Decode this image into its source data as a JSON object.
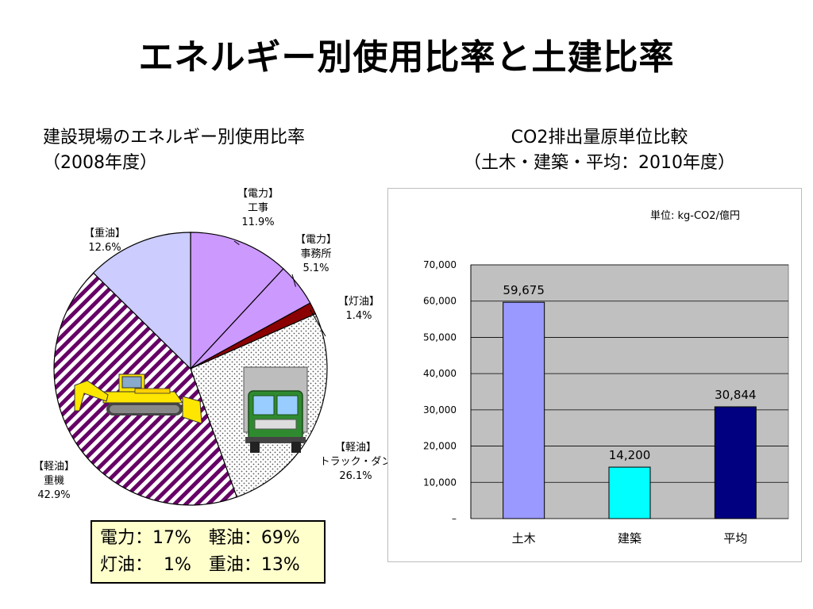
{
  "title": "エネルギー別使用比率と土建比率",
  "left_heading": {
    "line1": "建設現場のエネルギー別使用比率",
    "line2": "（2008年度）"
  },
  "right_heading": {
    "line1": "CO2排出量原単位比較",
    "line2": "（土木・建築・平均：2010年度）"
  },
  "summary": {
    "row1": "電力：17%　軽油：69%",
    "row2": "灯油：  1%　重油：13%"
  },
  "icons": {
    "bulldozer": "bulldozer-icon",
    "truck": "dump-truck-icon"
  },
  "chart_data": [
    {
      "type": "pie",
      "slices": [
        {
          "label_lines": [
            "【電力】",
            "工事"
          ],
          "pct_label": "11.9%",
          "value": 11.9,
          "color": "#cc99ff",
          "pattern": "solid"
        },
        {
          "label_lines": [
            "【電力】",
            "事務所"
          ],
          "pct_label": "5.1%",
          "value": 5.1,
          "color": "#cc99ff",
          "pattern": "solid"
        },
        {
          "label_lines": [
            "【灯油】"
          ],
          "pct_label": "1.4%",
          "value": 1.4,
          "color": "#8b0000",
          "pattern": "solid"
        },
        {
          "label_lines": [
            "【軽油】",
            "トラック・ダン"
          ],
          "pct_label": "26.1%",
          "value": 26.1,
          "color": "#ffffff",
          "pattern": "dots"
        },
        {
          "label_lines": [
            "【軽油】",
            "重機"
          ],
          "pct_label": "42.9%",
          "value": 42.9,
          "color": "#660066",
          "pattern": "stripes"
        },
        {
          "label_lines": [
            "【重油】"
          ],
          "pct_label": "12.6%",
          "value": 12.6,
          "color": "#ccccff",
          "pattern": "solid"
        }
      ]
    },
    {
      "type": "bar",
      "unit_note": "単位: kg-CO2/億円",
      "categories": [
        "土木",
        "建築",
        "平均"
      ],
      "values": [
        59675,
        14200,
        30844
      ],
      "value_labels": [
        "59,675",
        "14,200",
        "30,844"
      ],
      "colors": [
        "#9999ff",
        "#00ffff",
        "#000080"
      ],
      "ylim": [
        0,
        70000
      ],
      "yticks": [
        "–",
        "10,000",
        "20,000",
        "30,000",
        "40,000",
        "50,000",
        "60,000",
        "70,000"
      ],
      "plot_background": "#c0c0c0",
      "grid": true
    }
  ]
}
